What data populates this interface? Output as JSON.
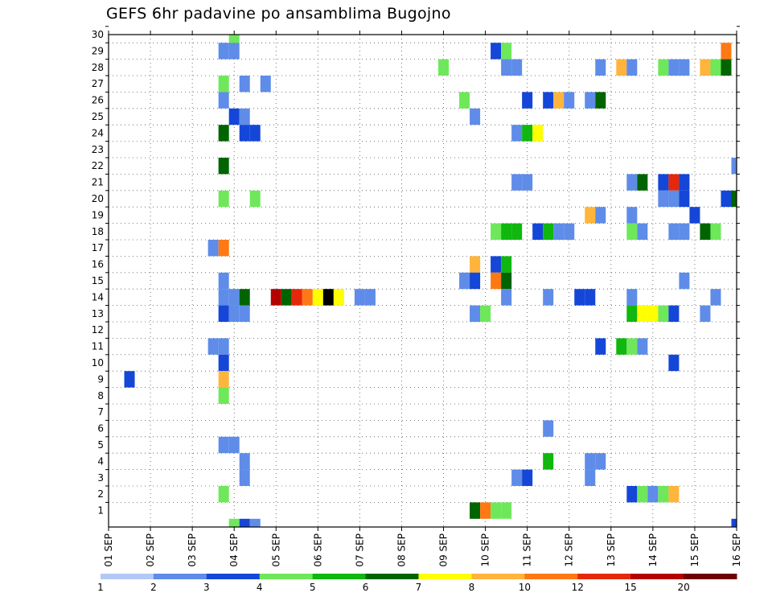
{
  "chart_data": {
    "type": "heatmap",
    "title": "GEFS 6hr padavine po ansamblima Bugojno",
    "xlabel": "",
    "ylabel": "",
    "x_tick_labels": [
      "01 SEP",
      "02 SEP",
      "03 SEP",
      "04 SEP",
      "05 SEP",
      "06 SEP",
      "07 SEP",
      "08 SEP",
      "09 SEP",
      "10 SEP",
      "11 SEP",
      "12 SEP",
      "13 SEP",
      "14 SEP",
      "15 SEP",
      "16 SEP"
    ],
    "y_tick_labels": [
      "1",
      "2",
      "3",
      "4",
      "5",
      "6",
      "7",
      "8",
      "9",
      "10",
      "11",
      "12",
      "13",
      "14",
      "15",
      "16",
      "17",
      "18",
      "19",
      "20",
      "21",
      "22",
      "23",
      "24",
      "25",
      "26",
      "27",
      "28",
      "29",
      "30"
    ],
    "x_unit": "6-hour step from 01 SEP 00Z",
    "x_range": [
      0,
      60
    ],
    "y_range": [
      0,
      30
    ],
    "grid": true,
    "legend": {
      "position": "bottom",
      "labels": [
        "1",
        "2",
        "3",
        "4",
        "5",
        "6",
        "7",
        "8",
        "10",
        "12",
        "15",
        "20"
      ],
      "colors": [
        "#b3c8f5",
        "#5e8ce8",
        "#1446d8",
        "#6ee85a",
        "#0fb70f",
        "#006400",
        "#ffff00",
        "#ffb43c",
        "#ff7814",
        "#e6280a",
        "#b40000",
        "#6e0000"
      ]
    },
    "cells": [
      [
        12,
        30,
        3
      ],
      [
        12,
        0,
        3
      ],
      [
        13,
        0,
        2
      ],
      [
        14,
        0,
        1
      ],
      [
        60,
        0,
        2
      ],
      [
        11,
        29,
        1
      ],
      [
        12,
        29,
        1
      ],
      [
        37,
        29,
        2
      ],
      [
        38,
        29,
        3
      ],
      [
        59,
        29,
        8
      ],
      [
        32,
        28,
        3
      ],
      [
        38,
        28,
        1
      ],
      [
        39,
        28,
        1
      ],
      [
        47,
        28,
        1
      ],
      [
        49,
        28,
        7
      ],
      [
        50,
        28,
        1
      ],
      [
        53,
        28,
        3
      ],
      [
        54,
        28,
        1
      ],
      [
        55,
        28,
        1
      ],
      [
        57,
        28,
        7
      ],
      [
        58,
        28,
        3
      ],
      [
        59,
        28,
        5
      ],
      [
        11,
        27,
        3
      ],
      [
        13,
        27,
        1
      ],
      [
        15,
        27,
        1
      ],
      [
        11,
        26,
        1
      ],
      [
        34,
        26,
        3
      ],
      [
        40,
        26,
        2
      ],
      [
        42,
        26,
        2
      ],
      [
        43,
        26,
        7
      ],
      [
        44,
        26,
        1
      ],
      [
        46,
        26,
        1
      ],
      [
        47,
        26,
        5
      ],
      [
        12,
        25,
        2
      ],
      [
        13,
        25,
        1
      ],
      [
        35,
        25,
        1
      ],
      [
        11,
        24,
        5
      ],
      [
        13,
        24,
        2
      ],
      [
        14,
        24,
        2
      ],
      [
        39,
        24,
        1
      ],
      [
        40,
        24,
        4
      ],
      [
        41,
        24,
        6
      ],
      [
        11,
        22,
        5
      ],
      [
        60,
        22,
        1
      ],
      [
        39,
        21,
        1
      ],
      [
        40,
        21,
        1
      ],
      [
        50,
        21,
        1
      ],
      [
        51,
        21,
        5
      ],
      [
        53,
        21,
        2
      ],
      [
        54,
        21,
        9
      ],
      [
        55,
        21,
        2
      ],
      [
        11,
        20,
        3
      ],
      [
        14,
        20,
        3
      ],
      [
        53,
        20,
        1
      ],
      [
        54,
        20,
        1
      ],
      [
        55,
        20,
        2
      ],
      [
        59,
        20,
        2
      ],
      [
        60,
        20,
        5
      ],
      [
        46,
        19,
        7
      ],
      [
        47,
        19,
        1
      ],
      [
        50,
        19,
        1
      ],
      [
        56,
        19,
        2
      ],
      [
        37,
        18,
        3
      ],
      [
        38,
        18,
        4
      ],
      [
        39,
        18,
        4
      ],
      [
        41,
        18,
        2
      ],
      [
        42,
        18,
        4
      ],
      [
        43,
        18,
        1
      ],
      [
        44,
        18,
        1
      ],
      [
        50,
        18,
        3
      ],
      [
        51,
        18,
        1
      ],
      [
        54,
        18,
        1
      ],
      [
        55,
        18,
        1
      ],
      [
        57,
        18,
        5
      ],
      [
        58,
        18,
        3
      ],
      [
        10,
        17,
        1
      ],
      [
        11,
        17,
        8
      ],
      [
        35,
        16,
        7
      ],
      [
        37,
        16,
        2
      ],
      [
        38,
        16,
        4
      ],
      [
        11,
        15,
        1
      ],
      [
        34,
        15,
        1
      ],
      [
        35,
        15,
        2
      ],
      [
        37,
        15,
        8
      ],
      [
        38,
        15,
        5
      ],
      [
        55,
        15,
        1
      ],
      [
        11,
        14,
        1
      ],
      [
        12,
        14,
        1
      ],
      [
        13,
        14,
        5
      ],
      [
        16,
        14,
        10
      ],
      [
        17,
        14,
        5
      ],
      [
        18,
        14,
        9
      ],
      [
        19,
        14,
        8
      ],
      [
        20,
        14,
        6
      ],
      [
        21,
        14,
        12
      ],
      [
        22,
        14,
        6
      ],
      [
        24,
        14,
        1
      ],
      [
        25,
        14,
        1
      ],
      [
        38,
        14,
        1
      ],
      [
        42,
        14,
        1
      ],
      [
        45,
        14,
        2
      ],
      [
        46,
        14,
        2
      ],
      [
        50,
        14,
        1
      ],
      [
        58,
        14,
        1
      ],
      [
        11,
        13,
        2
      ],
      [
        12,
        13,
        1
      ],
      [
        13,
        13,
        1
      ],
      [
        35,
        13,
        1
      ],
      [
        36,
        13,
        3
      ],
      [
        50,
        13,
        4
      ],
      [
        51,
        13,
        6
      ],
      [
        52,
        13,
        6
      ],
      [
        53,
        13,
        3
      ],
      [
        54,
        13,
        2
      ],
      [
        57,
        13,
        1
      ],
      [
        10,
        11,
        1
      ],
      [
        11,
        11,
        1
      ],
      [
        47,
        11,
        2
      ],
      [
        49,
        11,
        4
      ],
      [
        50,
        11,
        3
      ],
      [
        51,
        11,
        1
      ],
      [
        11,
        10,
        2
      ],
      [
        54,
        10,
        2
      ],
      [
        2,
        9,
        2
      ],
      [
        11,
        9,
        7
      ],
      [
        11,
        8,
        3
      ],
      [
        42,
        6,
        1
      ],
      [
        11,
        5,
        1
      ],
      [
        12,
        5,
        1
      ],
      [
        13,
        4,
        1
      ],
      [
        42,
        4,
        4
      ],
      [
        46,
        4,
        1
      ],
      [
        47,
        4,
        1
      ],
      [
        13,
        3,
        1
      ],
      [
        39,
        3,
        1
      ],
      [
        40,
        3,
        2
      ],
      [
        46,
        3,
        1
      ],
      [
        11,
        2,
        3
      ],
      [
        50,
        2,
        2
      ],
      [
        51,
        2,
        3
      ],
      [
        52,
        2,
        1
      ],
      [
        53,
        2,
        3
      ],
      [
        54,
        2,
        7
      ],
      [
        35,
        1,
        5
      ],
      [
        36,
        1,
        8
      ],
      [
        37,
        1,
        3
      ],
      [
        38,
        1,
        3
      ]
    ]
  }
}
